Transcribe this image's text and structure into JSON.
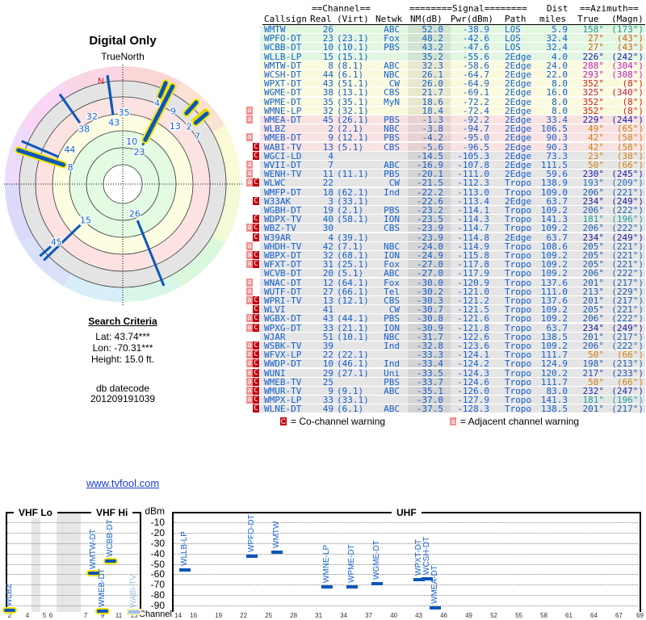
{
  "left": {
    "title": "Digital Only",
    "true_north": "TrueNorth",
    "north_marker": "N",
    "search_criteria_title": "Search Criteria",
    "lat": "Lat: 43.74***",
    "lon": "Lon: -70.31***",
    "height": "Height: 15.0 ft.",
    "db_label": "db datecode",
    "db_value": "201209191039",
    "link": "www.tvfool.com"
  },
  "polar": {
    "stations": [
      {
        "ch": "26",
        "az": 158,
        "nm": 52.0,
        "hl": false
      },
      {
        "ch": "23",
        "az": 27,
        "nm": 48.2,
        "hl": false
      },
      {
        "ch": "10",
        "az": 27,
        "nm": 43.2,
        "hl": true
      },
      {
        "ch": "15",
        "az": 226,
        "nm": 35.2,
        "hl": false
      },
      {
        "ch": "8",
        "az": 288,
        "nm": 32.3,
        "hl": true
      },
      {
        "ch": "44",
        "az": 293,
        "nm": 26.1,
        "hl": false
      },
      {
        "ch": "43",
        "az": 352,
        "nm": 26.0,
        "hl": false
      },
      {
        "ch": "38",
        "az": 325,
        "nm": 21.7,
        "hl": false
      },
      {
        "ch": "35",
        "az": 352,
        "nm": 18.6,
        "hl": false
      },
      {
        "ch": "32",
        "az": 352,
        "nm": 18.4,
        "hl": false
      },
      {
        "ch": "45",
        "az": 229,
        "nm": -1.3,
        "hl": false
      },
      {
        "ch": "2",
        "az": 49,
        "nm": -3.8,
        "hl": true
      },
      {
        "ch": "9",
        "az": 42,
        "nm": -4.2,
        "hl": true
      },
      {
        "ch": "13",
        "az": 42,
        "nm": -5.6,
        "hl": true
      },
      {
        "ch": "4",
        "az": 23,
        "nm": -14.5,
        "hl": true
      },
      {
        "ch": "7",
        "az": 50,
        "nm": -16.9,
        "hl": true
      }
    ]
  },
  "table": {
    "header1": {
      "channel": "==Channel==",
      "signal": "========Signal========",
      "dist": "Dist",
      "azimuth": "==Azimuth=="
    },
    "header2": {
      "callsign": "Callsign",
      "real": "Real",
      "virt": "(Virt)",
      "netwk": "Netwk",
      "nm": "NM(dB)",
      "pwr": "Pwr(dBm)",
      "path": "Path",
      "dist": "miles",
      "true": "True",
      "magn": "(Magn)"
    },
    "rows": [
      {
        "f": "",
        "cs": "WMTW",
        "real": "26",
        "virt": "",
        "net": "ABC",
        "nm": "52.0",
        "pwr": "-38.9",
        "path": "LOS",
        "dist": "5.9",
        "tru": "158°",
        "mag": "(173°)",
        "az_color": "#1a9a8a",
        "band": "green"
      },
      {
        "f": "",
        "cs": "WPFO-DT",
        "real": "23",
        "virt": "(23.1)",
        "net": "Fox",
        "nm": "48.2",
        "pwr": "-42.6",
        "path": "LOS",
        "dist": "32.4",
        "tru": "27°",
        "mag": "(43°)",
        "az_color": "#d06010",
        "band": "green"
      },
      {
        "f": "",
        "cs": "WCBB-DT",
        "real": "10",
        "virt": "(10.1)",
        "net": "PBS",
        "nm": "43.2",
        "pwr": "-47.6",
        "path": "LOS",
        "dist": "32.4",
        "tru": "27°",
        "mag": "(43°)",
        "az_color": "#d06010",
        "band": "green"
      },
      {
        "f": "",
        "cs": "WLLB-LP",
        "real": "15",
        "virt": "(15.1)",
        "net": "",
        "nm": "35.2",
        "pwr": "-55.6",
        "path": "2Edge",
        "dist": "4.0",
        "tru": "226°",
        "mag": "(242°)",
        "az_color": "#2020b0",
        "band": "green"
      },
      {
        "f": "",
        "cs": "WMTW-DT",
        "real": "8",
        "virt": "(8.1)",
        "net": "ABC",
        "nm": "32.3",
        "pwr": "-58.6",
        "path": "2Edge",
        "dist": "24.0",
        "tru": "288°",
        "mag": "(304°)",
        "az_color": "#c020c0",
        "band": "yellow"
      },
      {
        "f": "",
        "cs": "WCSH-DT",
        "real": "44",
        "virt": "(6.1)",
        "net": "NBC",
        "nm": "26.1",
        "pwr": "-64.7",
        "path": "2Edge",
        "dist": "22.0",
        "tru": "293°",
        "mag": "(308°)",
        "az_color": "#c020c0",
        "band": "yellow"
      },
      {
        "f": "",
        "cs": "WPXT-DT",
        "real": "43",
        "virt": "(51.1)",
        "net": "CW",
        "nm": "26.0",
        "pwr": "-64.9",
        "path": "2Edge",
        "dist": "8.0",
        "tru": "352°",
        "mag": "(8°)",
        "az_color": "#d02020",
        "band": "yellow"
      },
      {
        "f": "",
        "cs": "WGME-DT",
        "real": "38",
        "virt": "(13.1)",
        "net": "CBS",
        "nm": "21.7",
        "pwr": "-69.1",
        "path": "2Edge",
        "dist": "16.0",
        "tru": "325°",
        "mag": "(340°)",
        "az_color": "#c02060",
        "band": "yellow"
      },
      {
        "f": "",
        "cs": "WPME-DT",
        "real": "35",
        "virt": "(35.1)",
        "net": "MyN",
        "nm": "18.6",
        "pwr": "-72.2",
        "path": "2Edge",
        "dist": "8.0",
        "tru": "352°",
        "mag": "(8°)",
        "az_color": "#d02020",
        "band": "yellow"
      },
      {
        "f": "a",
        "cs": "WMNE-LP",
        "real": "32",
        "virt": "(32.1)",
        "net": "",
        "nm": "18.4",
        "pwr": "-72.4",
        "path": "2Edge",
        "dist": "8.0",
        "tru": "352°",
        "mag": "(8°)",
        "az_color": "#d02020",
        "band": "yellow"
      },
      {
        "f": "a",
        "cs": "WMEA-DT",
        "real": "45",
        "virt": "(26.1)",
        "net": "PBS",
        "nm": "-1.3",
        "pwr": "-92.2",
        "path": "2Edge",
        "dist": "33.4",
        "tru": "229°",
        "mag": "(244°)",
        "az_color": "#2020b0",
        "band": "pink"
      },
      {
        "f": "",
        "cs": "WLBZ",
        "real": "2",
        "virt": "(2.1)",
        "net": "NBC",
        "nm": "-3.8",
        "pwr": "-94.7",
        "path": "2Edge",
        "dist": "106.5",
        "tru": "49°",
        "mag": "(65°)",
        "az_color": "#d08010",
        "band": "pink"
      },
      {
        "f": "a",
        "cs": "WMEB-DT",
        "real": "9",
        "virt": "(12.1)",
        "net": "PBS",
        "nm": "-4.2",
        "pwr": "-95.0",
        "path": "2Edge",
        "dist": "90.3",
        "tru": "42°",
        "mag": "(58°)",
        "az_color": "#d08010",
        "band": "pink"
      },
      {
        "f": "C",
        "cs": "WABI-TV",
        "real": "13",
        "virt": "(5.1)",
        "net": "CBS",
        "nm": "-5.6",
        "pwr": "-96.5",
        "path": "2Edge",
        "dist": "90.3",
        "tru": "42°",
        "mag": "(58°)",
        "az_color": "#d08010",
        "band": "pink"
      },
      {
        "f": "C",
        "cs": "WGCI-LD",
        "real": "4",
        "virt": "",
        "net": "",
        "nm": "-14.5",
        "pwr": "-105.3",
        "path": "2Edge",
        "dist": "73.3",
        "tru": "23°",
        "mag": "(38°)",
        "az_color": "#d08010",
        "band": "gray"
      },
      {
        "f": "a",
        "cs": "WVII-DT",
        "real": "7",
        "virt": "",
        "net": "ABC",
        "nm": "-16.9",
        "pwr": "-107.8",
        "path": "2Edge",
        "dist": "111.5",
        "tru": "50°",
        "mag": "(66°)",
        "az_color": "#d08010",
        "band": "gray"
      },
      {
        "f": "a",
        "cs": "WENH-TV",
        "real": "11",
        "virt": "(11.1)",
        "net": "PBS",
        "nm": "-20.1",
        "pwr": "-111.0",
        "path": "2Edge",
        "dist": "59.6",
        "tru": "230°",
        "mag": "(245°)",
        "az_color": "#2020b0",
        "band": "gray"
      },
      {
        "f": "aC",
        "cs": "WLWC",
        "real": "22",
        "virt": "",
        "net": "CW",
        "nm": "-21.5",
        "pwr": "-112.3",
        "path": "Tropo",
        "dist": "138.9",
        "tru": "193°",
        "mag": "(209°)",
        "az_color": "#2070c0",
        "band": "gray"
      },
      {
        "f": "",
        "cs": "WMFP-DT",
        "real": "18",
        "virt": "(62.1)",
        "net": "Ind",
        "nm": "-22.2",
        "pwr": "-113.0",
        "path": "Tropo",
        "dist": "109.0",
        "tru": "206°",
        "mag": "(221°)",
        "az_color": "#2060b0",
        "band": "gray"
      },
      {
        "f": "C",
        "cs": "W33AK",
        "real": "3",
        "virt": "(33.1)",
        "net": "",
        "nm": "-22.6",
        "pwr": "-113.4",
        "path": "2Edge",
        "dist": "63.7",
        "tru": "234°",
        "mag": "(249°)",
        "az_color": "#2020a0",
        "band": "gray"
      },
      {
        "f": "",
        "cs": "WGBH-DT",
        "real": "19",
        "virt": "(2.1)",
        "net": "PBS",
        "nm": "-23.2",
        "pwr": "-114.1",
        "path": "Tropo",
        "dist": "109.2",
        "tru": "206°",
        "mag": "(222°)",
        "az_color": "#2060b0",
        "band": "gray"
      },
      {
        "f": "C",
        "cs": "WDPX-TV",
        "real": "40",
        "virt": "(58.1)",
        "net": "ION",
        "nm": "-23.5",
        "pwr": "-114.3",
        "path": "Tropo",
        "dist": "141.3",
        "tru": "181°",
        "mag": "(196°)",
        "az_color": "#20a0a0",
        "band": "gray"
      },
      {
        "f": "aC",
        "cs": "WBZ-TV",
        "real": "30",
        "virt": "",
        "net": "CBS",
        "nm": "-23.9",
        "pwr": "-114.7",
        "path": "Tropo",
        "dist": "109.2",
        "tru": "206°",
        "mag": "(222°)",
        "az_color": "#2060b0",
        "band": "gray"
      },
      {
        "f": "C",
        "cs": "W39AR",
        "real": "4",
        "virt": "(39.1)",
        "net": "",
        "nm": "-23.9",
        "pwr": "-114.8",
        "path": "2Edge",
        "dist": "63.7",
        "tru": "234°",
        "mag": "(249°)",
        "az_color": "#2020a0",
        "band": "gray"
      },
      {
        "f": "a",
        "cs": "WHDH-TV",
        "real": "42",
        "virt": "(7.1)",
        "net": "NBC",
        "nm": "-24.0",
        "pwr": "-114.9",
        "path": "Tropo",
        "dist": "108.6",
        "tru": "205°",
        "mag": "(221°)",
        "az_color": "#2060b0",
        "band": "gray"
      },
      {
        "f": "aC",
        "cs": "WBPX-DT",
        "real": "32",
        "virt": "(68.1)",
        "net": "ION",
        "nm": "-24.9",
        "pwr": "-115.8",
        "path": "Tropo",
        "dist": "109.2",
        "tru": "205°",
        "mag": "(221°)",
        "az_color": "#2060b0",
        "band": "gray"
      },
      {
        "f": "aC",
        "cs": "WFXT-DT",
        "real": "31",
        "virt": "(25.1)",
        "net": "Fox",
        "nm": "-27.0",
        "pwr": "-117.8",
        "path": "Tropo",
        "dist": "109.2",
        "tru": "205°",
        "mag": "(221°)",
        "az_color": "#2060b0",
        "band": "gray"
      },
      {
        "f": "",
        "cs": "WCVB-DT",
        "real": "20",
        "virt": "(5.1)",
        "net": "ABC",
        "nm": "-27.0",
        "pwr": "-117.9",
        "path": "Tropo",
        "dist": "109.2",
        "tru": "206°",
        "mag": "(222°)",
        "az_color": "#2060b0",
        "band": "gray"
      },
      {
        "f": "a",
        "cs": "WNAC-DT",
        "real": "12",
        "virt": "(64.1)",
        "net": "Fox",
        "nm": "-30.0",
        "pwr": "-120.9",
        "path": "Tropo",
        "dist": "137.6",
        "tru": "201°",
        "mag": "(217°)",
        "az_color": "#2060b0",
        "band": "gray"
      },
      {
        "f": "a",
        "cs": "WUTF-DT",
        "real": "27",
        "virt": "(66.1)",
        "net": "Tel",
        "nm": "-30.2",
        "pwr": "-121.0",
        "path": "Tropo",
        "dist": "111.0",
        "tru": "213°",
        "mag": "(229°)",
        "az_color": "#2060b0",
        "band": "gray"
      },
      {
        "f": "aC",
        "cs": "WPRI-TV",
        "real": "13",
        "virt": "(12.1)",
        "net": "CBS",
        "nm": "-30.3",
        "pwr": "-121.2",
        "path": "Tropo",
        "dist": "137.6",
        "tru": "201°",
        "mag": "(217°)",
        "az_color": "#2060b0",
        "band": "gray"
      },
      {
        "f": "C",
        "cs": "WLVI",
        "real": "41",
        "virt": "",
        "net": "CW",
        "nm": "-30.7",
        "pwr": "-121.5",
        "path": "Tropo",
        "dist": "109.2",
        "tru": "205°",
        "mag": "(221°)",
        "az_color": "#2060b0",
        "band": "gray"
      },
      {
        "f": "aC",
        "cs": "WGBX-DT",
        "real": "43",
        "virt": "(44.1)",
        "net": "PBS",
        "nm": "-30.8",
        "pwr": "-121.6",
        "path": "Tropo",
        "dist": "109.2",
        "tru": "206°",
        "mag": "(222°)",
        "az_color": "#2060b0",
        "band": "gray"
      },
      {
        "f": "aC",
        "cs": "WPXG-DT",
        "real": "33",
        "virt": "(21.1)",
        "net": "ION",
        "nm": "-30.9",
        "pwr": "-121.8",
        "path": "Tropo",
        "dist": "63.7",
        "tru": "234°",
        "mag": "(249°)",
        "az_color": "#2020a0",
        "band": "gray"
      },
      {
        "f": "",
        "cs": "WJAR",
        "real": "51",
        "virt": "(10.1)",
        "net": "NBC",
        "nm": "-31.7",
        "pwr": "-122.6",
        "path": "Tropo",
        "dist": "138.5",
        "tru": "201°",
        "mag": "(217°)",
        "az_color": "#2060b0",
        "band": "gray"
      },
      {
        "f": "aC",
        "cs": "WSBK-TV",
        "real": "39",
        "virt": "",
        "net": "Ind",
        "nm": "-32.8",
        "pwr": "-123.6",
        "path": "Tropo",
        "dist": "109.2",
        "tru": "206°",
        "mag": "(222°)",
        "az_color": "#2060b0",
        "band": "gray"
      },
      {
        "f": "aC",
        "cs": "WFVX-LP",
        "real": "22",
        "virt": "(22.1)",
        "net": "",
        "nm": "-33.3",
        "pwr": "-124.1",
        "path": "Tropo",
        "dist": "111.7",
        "tru": "50°",
        "mag": "(66°)",
        "az_color": "#d08010",
        "band": "gray"
      },
      {
        "f": "aC",
        "cs": "WWDP-DT",
        "real": "10",
        "virt": "(46.1)",
        "net": "Ind",
        "nm": "-33.4",
        "pwr": "-124.2",
        "path": "Tropo",
        "dist": "124.9",
        "tru": "198°",
        "mag": "(213°)",
        "az_color": "#2060b0",
        "band": "gray"
      },
      {
        "f": "aC",
        "cs": "WUNI",
        "real": "29",
        "virt": "(27.1)",
        "net": "Uni",
        "nm": "-33.5",
        "pwr": "-124.3",
        "path": "Tropo",
        "dist": "120.2",
        "tru": "217°",
        "mag": "(233°)",
        "az_color": "#2050b0",
        "band": "gray"
      },
      {
        "f": "aC",
        "cs": "WMEB-TV",
        "real": "25",
        "virt": "",
        "net": "PBS",
        "nm": "-33.7",
        "pwr": "-124.6",
        "path": "Tropo",
        "dist": "111.7",
        "tru": "50°",
        "mag": "(66°)",
        "az_color": "#d08010",
        "band": "gray"
      },
      {
        "f": "aC",
        "cs": "WMUR-TV",
        "real": "9",
        "virt": "(9.1)",
        "net": "ABC",
        "nm": "-35.1",
        "pwr": "-126.0",
        "path": "Tropo",
        "dist": "83.0",
        "tru": "232°",
        "mag": "(247°)",
        "az_color": "#2030b0",
        "band": "gray"
      },
      {
        "f": "aC",
        "cs": "WMPX-LP",
        "real": "33",
        "virt": "(33.1)",
        "net": "",
        "nm": "-37.0",
        "pwr": "-127.9",
        "path": "Tropo",
        "dist": "141.3",
        "tru": "181°",
        "mag": "(196°)",
        "az_color": "#20a0a0",
        "band": "gray"
      },
      {
        "f": "C",
        "cs": "WLNE-DT",
        "real": "49",
        "virt": "(6.1)",
        "net": "ABC",
        "nm": "-37.5",
        "pwr": "-128.3",
        "path": "Tropo",
        "dist": "138.5",
        "tru": "201°",
        "mag": "(217°)",
        "az_color": "#2060b0",
        "band": "gray"
      }
    ]
  },
  "legend": {
    "co_icon": "C",
    "co_label": "= Co-channel warning",
    "adj_icon": "a",
    "adj_label": "= Adjacent channel warning"
  },
  "chart_data": {
    "type": "scatter",
    "title": "",
    "ylabel": "dBm",
    "xlabel": "Channel",
    "ylim": [
      -100,
      0
    ],
    "yticks": [
      "-10",
      "-20",
      "-30",
      "-40",
      "-50",
      "-60",
      "-70",
      "-80",
      "-90"
    ],
    "panels": {
      "vhf_lo": "VHF Lo",
      "vhf_hi": "VHF Hi",
      "uhf": "UHF"
    },
    "vhf_ticks": [
      "2",
      "4",
      "5",
      "6",
      "7",
      "9",
      "11",
      "13"
    ],
    "uhf_ticks": [
      "14",
      "16",
      "19",
      "22",
      "25",
      "28",
      "31",
      "34",
      "37",
      "40",
      "43",
      "46",
      "49",
      "52",
      "55",
      "58",
      "61",
      "64",
      "67",
      "69"
    ],
    "points": [
      {
        "name": "WLBZ",
        "ch": 2,
        "dbm": -94.7,
        "style": "hl"
      },
      {
        "name": "WMTW-DT",
        "ch": 8,
        "dbm": -58.6,
        "style": "hl"
      },
      {
        "name": "WMEB-DT",
        "ch": 9,
        "dbm": -95.0,
        "style": "hl"
      },
      {
        "name": "WCBB-DT",
        "ch": 10,
        "dbm": -47.6,
        "style": "hl"
      },
      {
        "name": "WABI-TV",
        "ch": 13,
        "dbm": -96.5,
        "style": "faded"
      },
      {
        "name": "WLLB-LP",
        "ch": 15,
        "dbm": -55.6,
        "style": ""
      },
      {
        "name": "WPFO-DT",
        "ch": 23,
        "dbm": -42.6,
        "style": ""
      },
      {
        "name": "WMTW",
        "ch": 26,
        "dbm": -38.9,
        "style": ""
      },
      {
        "name": "WMNE-LP",
        "ch": 32,
        "dbm": -72.4,
        "style": ""
      },
      {
        "name": "WPME-DT",
        "ch": 35,
        "dbm": -72.2,
        "style": ""
      },
      {
        "name": "WGME-DT",
        "ch": 38,
        "dbm": -69.1,
        "style": ""
      },
      {
        "name": "WPXT-DT",
        "ch": 43,
        "dbm": -64.9,
        "style": ""
      },
      {
        "name": "WCSH-DT",
        "ch": 44,
        "dbm": -64.7,
        "style": ""
      },
      {
        "name": "WMEA-DT",
        "ch": 45,
        "dbm": -92.2,
        "style": ""
      }
    ]
  }
}
